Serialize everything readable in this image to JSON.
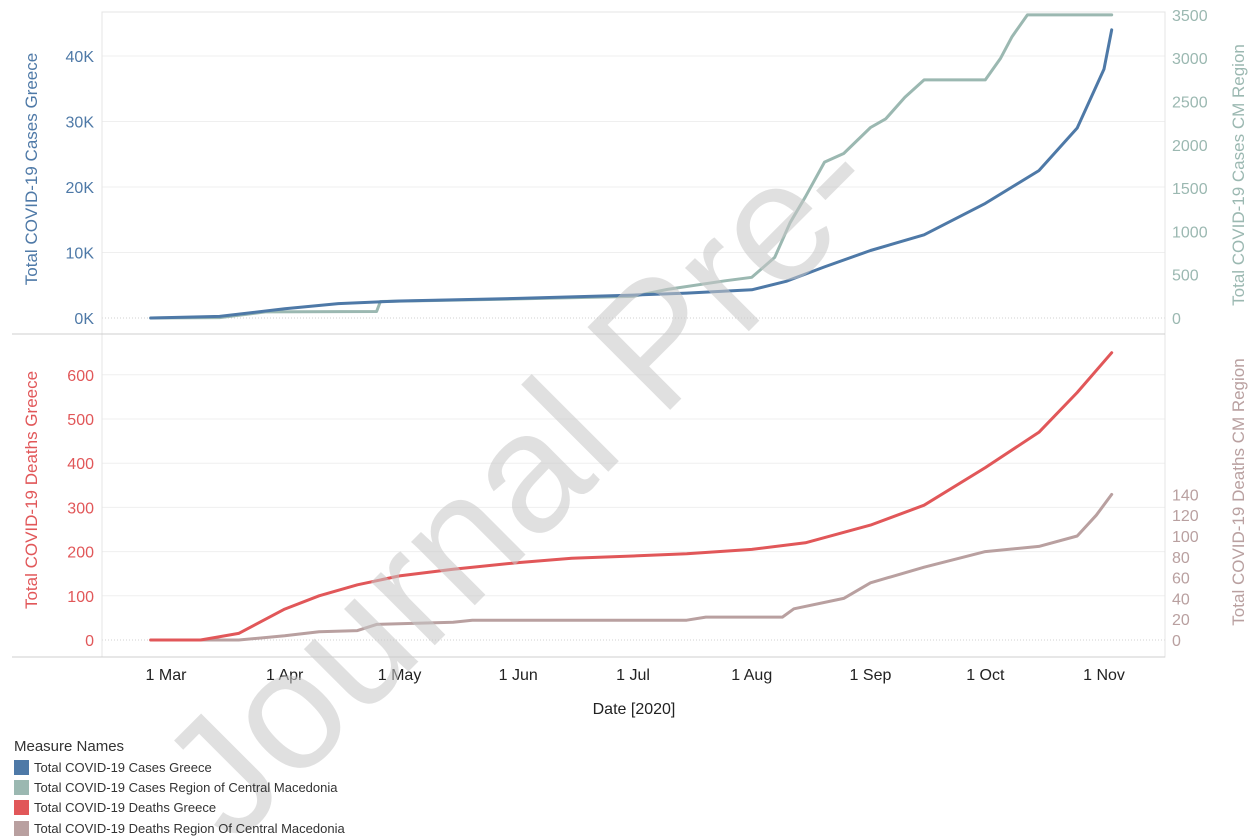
{
  "watermark": "Journal Pre-",
  "legend": {
    "title": "Measure Names",
    "items": [
      {
        "label": "Total COVID-19 Cases Greece",
        "color": "#4e79a7"
      },
      {
        "label": "Total COVID-19 Cases Region of Central Macedonia",
        "color": "#9bb8b1"
      },
      {
        "label": "Total COVID-19 Deaths Greece",
        "color": "#e15759"
      },
      {
        "label": "Total COVID-19 Deaths Region Of Central Macedonia",
        "color": "#b9a0a0"
      }
    ]
  },
  "chart_data": [
    {
      "type": "line",
      "ylabel": "Total COVID-19 Cases Greece",
      "ylabel_right": "Total COVID-19 Cases CM Region",
      "y_ticks": [
        "0K",
        "10K",
        "20K",
        "30K",
        "40K"
      ],
      "y_ticks_right": [
        "0",
        "500",
        "1000",
        "1500",
        "2000",
        "2500",
        "3000",
        "3500"
      ],
      "ylim": [
        0,
        46000
      ],
      "ylim_right": [
        0,
        3500
      ],
      "series": [
        {
          "name": "Total COVID-19 Cases Greece",
          "axis": "left",
          "color": "#4e79a7",
          "x": [
            "2020-02-26",
            "2020-03-15",
            "2020-04-01",
            "2020-04-15",
            "2020-05-01",
            "2020-06-01",
            "2020-07-01",
            "2020-07-15",
            "2020-08-01",
            "2020-08-10",
            "2020-08-20",
            "2020-09-01",
            "2020-09-15",
            "2020-10-01",
            "2020-10-15",
            "2020-10-25",
            "2020-11-01",
            "2020-11-03"
          ],
          "y": [
            0,
            250,
            1400,
            2200,
            2600,
            3000,
            3500,
            3800,
            4300,
            5600,
            7800,
            10300,
            12700,
            17500,
            22500,
            29000,
            38000,
            44000
          ]
        },
        {
          "name": "Total COVID-19 Cases Region of Central Macedonia",
          "axis": "right",
          "color": "#9bb8b1",
          "x": [
            "2020-02-26",
            "2020-03-15",
            "2020-03-27",
            "2020-04-25",
            "2020-04-26",
            "2020-06-01",
            "2020-07-01",
            "2020-07-10",
            "2020-07-25",
            "2020-08-01",
            "2020-08-07",
            "2020-08-11",
            "2020-08-15",
            "2020-08-20",
            "2020-08-25",
            "2020-09-01",
            "2020-09-05",
            "2020-09-10",
            "2020-09-15",
            "2020-10-01",
            "2020-10-05",
            "2020-10-08",
            "2020-10-12",
            "2020-11-03"
          ],
          "y": [
            0,
            5,
            70,
            75,
            190,
            220,
            250,
            330,
            430,
            470,
            700,
            1100,
            1400,
            1800,
            1900,
            2200,
            2300,
            2550,
            2750,
            2750,
            3000,
            3250,
            3500,
            3500
          ]
        },
        {
          "name": "Total COVID-19 Deaths Greece",
          "axis": "left2",
          "color": "#e15759",
          "x": [
            "2020-02-26",
            "2020-03-10",
            "2020-03-20",
            "2020-04-01",
            "2020-04-10",
            "2020-04-20",
            "2020-05-01",
            "2020-05-15",
            "2020-06-01",
            "2020-06-15",
            "2020-07-01",
            "2020-07-15",
            "2020-08-01",
            "2020-08-15",
            "2020-09-01",
            "2020-09-15",
            "2020-10-01",
            "2020-10-15",
            "2020-10-25",
            "2020-11-03"
          ],
          "y": [
            0,
            0,
            15,
            70,
            100,
            125,
            145,
            160,
            175,
            185,
            190,
            195,
            205,
            220,
            260,
            305,
            390,
            470,
            560,
            650
          ]
        },
        {
          "name": "Total COVID-19 Deaths Region Of Central Macedonia",
          "axis": "right2",
          "color": "#b9a0a0",
          "x": [
            "2020-02-26",
            "2020-03-20",
            "2020-04-01",
            "2020-04-10",
            "2020-04-20",
            "2020-04-25",
            "2020-05-15",
            "2020-05-20",
            "2020-07-15",
            "2020-07-20",
            "2020-08-09",
            "2020-08-12",
            "2020-08-25",
            "2020-09-01",
            "2020-09-15",
            "2020-10-01",
            "2020-10-15",
            "2020-10-25",
            "2020-10-30",
            "2020-11-03"
          ],
          "y": [
            0,
            0,
            4,
            8,
            9,
            15,
            17,
            19,
            19,
            22,
            22,
            30,
            40,
            55,
            70,
            85,
            90,
            100,
            120,
            140
          ]
        }
      ]
    },
    {
      "type": "line",
      "ylabel": "Total COVID-19 Deaths Greece",
      "ylabel_right": "Total COVID-19 Deaths CM Region",
      "y_ticks": [
        "0",
        "100",
        "200",
        "300",
        "400",
        "500",
        "600"
      ],
      "y_ticks_right": [
        "0",
        "20",
        "40",
        "60",
        "80",
        "100",
        "120",
        "140"
      ],
      "ylim": [
        0,
        690
      ],
      "ylim_right": [
        0,
        143
      ],
      "xlabel": "Date [2020]",
      "x_ticks": [
        "1 Mar",
        "1 Apr",
        "1 May",
        "1 Jun",
        "1 Jul",
        "1 Aug",
        "1 Sep",
        "1 Oct",
        "1 Nov"
      ],
      "x_tick_dates": [
        "2020-03-01",
        "2020-04-01",
        "2020-05-01",
        "2020-06-01",
        "2020-07-01",
        "2020-08-01",
        "2020-09-01",
        "2020-10-01",
        "2020-11-01"
      ]
    }
  ]
}
